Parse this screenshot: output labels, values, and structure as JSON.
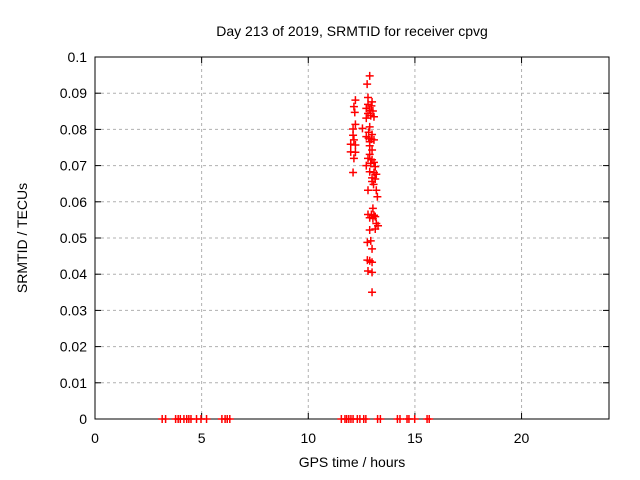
{
  "window": {
    "background": "#ffffff"
  },
  "colors": {
    "marker": "#ff0000",
    "grid": "#b0b0b0",
    "axis": "#000000",
    "text": "#000000",
    "background": "#ffffff"
  },
  "chart_data": {
    "type": "scatter",
    "title": "Day 213 of 2019, SRMTID for receiver cpvg",
    "xlabel": "GPS time / hours",
    "ylabel": "SRMTID / TECUs",
    "xlim": [
      0,
      24.1
    ],
    "ylim": [
      0,
      0.1
    ],
    "xticks": [
      0,
      5,
      10,
      15,
      20
    ],
    "xtick_labels": [
      "0",
      "5",
      "10",
      "15",
      "20"
    ],
    "yticks": [
      0,
      0.01,
      0.02,
      0.03,
      0.04,
      0.05,
      0.06,
      0.07,
      0.08,
      0.09,
      0.1
    ],
    "ytick_labels": [
      "0",
      "0.01",
      "0.02",
      "0.03",
      "0.04",
      "0.05",
      "0.06",
      "0.07",
      "0.08",
      "0.09",
      "0.1"
    ],
    "grid": true,
    "grid_style": "dashed",
    "legend": "none",
    "marker": "plus",
    "series": [
      {
        "name": "SRMTID",
        "color": "#ff0000",
        "points": [
          [
            3.15,
            0
          ],
          [
            3.31,
            0
          ],
          [
            3.78,
            0
          ],
          [
            3.9,
            0
          ],
          [
            4.0,
            0
          ],
          [
            4.17,
            0
          ],
          [
            4.3,
            0
          ],
          [
            4.4,
            0
          ],
          [
            4.5,
            0
          ],
          [
            4.76,
            0
          ],
          [
            4.97,
            0
          ],
          [
            5.23,
            0
          ],
          [
            5.95,
            0
          ],
          [
            6.1,
            0
          ],
          [
            6.2,
            0
          ],
          [
            6.32,
            0
          ],
          [
            11.55,
            0
          ],
          [
            11.72,
            0
          ],
          [
            11.8,
            0
          ],
          [
            11.9,
            0
          ],
          [
            12.0,
            0
          ],
          [
            12.1,
            0
          ],
          [
            12.3,
            0
          ],
          [
            12.42,
            0
          ],
          [
            12.6,
            0
          ],
          [
            12.7,
            0
          ],
          [
            13.25,
            0
          ],
          [
            13.38,
            0
          ],
          [
            14.18,
            0
          ],
          [
            14.3,
            0
          ],
          [
            14.63,
            0
          ],
          [
            14.72,
            0
          ],
          [
            14.99,
            0
          ],
          [
            15.57,
            0
          ],
          [
            15.67,
            0
          ],
          [
            12.88,
            0.0948
          ],
          [
            12.76,
            0.0925
          ],
          [
            12.8,
            0.0888
          ],
          [
            12.99,
            0.0876
          ],
          [
            12.21,
            0.0881
          ],
          [
            12.14,
            0.0863
          ],
          [
            12.18,
            0.0847
          ],
          [
            12.21,
            0.0814
          ],
          [
            12.1,
            0.0801
          ],
          [
            12.1,
            0.0784
          ],
          [
            12.14,
            0.0771
          ],
          [
            11.99,
            0.0759
          ],
          [
            12.21,
            0.0757
          ],
          [
            11.99,
            0.0738
          ],
          [
            12.21,
            0.0737
          ],
          [
            12.14,
            0.072
          ],
          [
            12.1,
            0.0681
          ],
          [
            12.8,
            0.0869
          ],
          [
            12.96,
            0.0865
          ],
          [
            12.72,
            0.0858
          ],
          [
            12.88,
            0.0853
          ],
          [
            13.03,
            0.0851
          ],
          [
            12.8,
            0.0844
          ],
          [
            12.93,
            0.0838
          ],
          [
            13.08,
            0.0835
          ],
          [
            12.72,
            0.0831
          ],
          [
            12.88,
            0.0807
          ],
          [
            12.54,
            0.0803
          ],
          [
            12.83,
            0.0792
          ],
          [
            12.99,
            0.0786
          ],
          [
            12.72,
            0.078
          ],
          [
            12.83,
            0.0776
          ],
          [
            12.96,
            0.0773
          ],
          [
            13.08,
            0.0771
          ],
          [
            12.88,
            0.0766
          ],
          [
            12.88,
            0.0755
          ],
          [
            12.99,
            0.0743
          ],
          [
            12.88,
            0.0731
          ],
          [
            12.8,
            0.072
          ],
          [
            12.99,
            0.0716
          ],
          [
            12.93,
            0.0706
          ],
          [
            13.08,
            0.0709
          ],
          [
            12.72,
            0.07
          ],
          [
            13.14,
            0.0697
          ],
          [
            12.88,
            0.0683
          ],
          [
            13.08,
            0.0681
          ],
          [
            13.19,
            0.0676
          ],
          [
            12.99,
            0.0666
          ],
          [
            13.14,
            0.0663
          ],
          [
            12.99,
            0.0656
          ],
          [
            13.06,
            0.0648
          ],
          [
            12.8,
            0.0632
          ],
          [
            13.19,
            0.0632
          ],
          [
            13.24,
            0.0614
          ],
          [
            13.03,
            0.0582
          ],
          [
            12.8,
            0.0565
          ],
          [
            12.96,
            0.0565
          ],
          [
            13.08,
            0.0563
          ],
          [
            12.88,
            0.0556
          ],
          [
            13.03,
            0.0554
          ],
          [
            13.14,
            0.0559
          ],
          [
            13.19,
            0.054
          ],
          [
            13.27,
            0.0534
          ],
          [
            12.88,
            0.0522
          ],
          [
            13.14,
            0.0525
          ],
          [
            12.93,
            0.0492
          ],
          [
            12.77,
            0.0488
          ],
          [
            12.99,
            0.047
          ],
          [
            12.77,
            0.0439
          ],
          [
            12.88,
            0.0437
          ],
          [
            12.99,
            0.0433
          ],
          [
            12.8,
            0.0409
          ],
          [
            12.99,
            0.0405
          ],
          [
            12.99,
            0.035
          ]
        ]
      }
    ]
  }
}
